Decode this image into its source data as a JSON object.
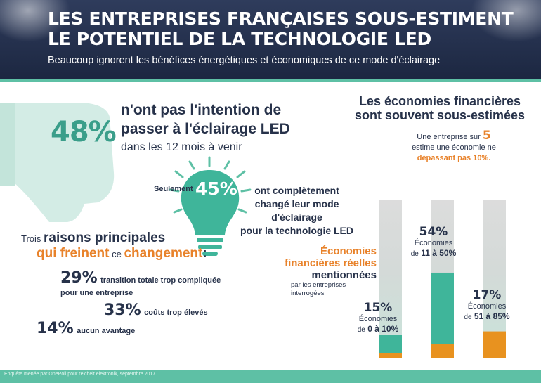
{
  "header": {
    "title_line1": "LES ENTREPRISES FRANÇAISES SOUS-ESTIMENT",
    "title_line2": "LE POTENTIEL DE LA TECHNOLOGIE LED",
    "subtitle": "Beaucoup ignorent les bénéfices énergétiques et économiques de ce mode d'éclairage"
  },
  "colors": {
    "navy": "#27324a",
    "teal": "#5ec0a5",
    "teal_dark": "#3a9e8a",
    "orange": "#e8822a",
    "grey": "#dcdcdc"
  },
  "stat48": {
    "value": "48%",
    "line1": "n'ont pas l'intention de",
    "line2": "passer à l'éclairage LED",
    "line3": "dans les 12 mois à venir",
    "icon": "thumbs-down-icon"
  },
  "stat45": {
    "prefix": "Seulement",
    "value": "45%",
    "line1": "ont complètement",
    "line2": "changé leur mode",
    "line3": "d'éclairage",
    "line4": "pour la technologie LED",
    "icon": "light-bulb-icon"
  },
  "reasons": {
    "intro_small": "Trois",
    "intro_big": "raisons principales",
    "intro2_big1": "qui freinent",
    "intro2_small": "ce",
    "intro2_big2": "changement",
    "colon": ":",
    "items": [
      {
        "pct": "29%",
        "text1": "transition totale trop compliquée",
        "text2": "pour une entreprise"
      },
      {
        "pct": "33%",
        "text1": "coûts trop élevés"
      },
      {
        "pct": "14%",
        "text1": "aucun avantage"
      }
    ]
  },
  "financial": {
    "title_line1": "Les économies financières",
    "title_line2": "sont souvent sous-estimées",
    "one_in_five_pre": "Une entreprise sur",
    "one_in_five_num": "5",
    "one_in_five_line2": "estime une économie ne",
    "one_in_five_line3": "dépassant pas 10%.",
    "eco_label_o1": "Économies",
    "eco_label_o2": "financières réelles",
    "eco_label_d": "mentionnées",
    "eco_label_s1": "par les entreprises",
    "eco_label_s2": "interrogées"
  },
  "chart_data": {
    "type": "bar",
    "categories": [
      "de 0 à 10%",
      "de 11 à 50%",
      "de 51 à 85%"
    ],
    "values": [
      15,
      54,
      17
    ],
    "ylim": [
      0,
      100
    ],
    "labels": [
      {
        "pct": "15%",
        "eco": "Économies",
        "de": "de",
        "range": "0 à 10%"
      },
      {
        "pct": "54%",
        "eco": "Économies",
        "de": "de",
        "range": "11 à 50%"
      },
      {
        "pct": "17%",
        "eco": "Économies",
        "de": "de",
        "range": "51 à 85%"
      }
    ],
    "bar_colors": [
      "#3fb59a",
      "#3fb59a",
      "#e8921f"
    ]
  },
  "footer": {
    "source": "Enquête menée par OnePoll pour reichelt elektronik, septembre 2017"
  }
}
